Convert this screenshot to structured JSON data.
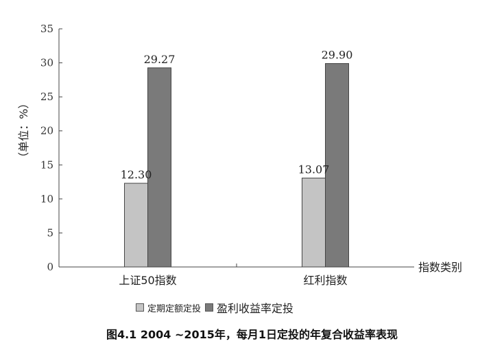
{
  "chart_data": {
    "type": "bar",
    "categories": [
      "上证50指数",
      "红利指数"
    ],
    "series": [
      {
        "name": "定期定额定投",
        "values": [
          12.3,
          13.07
        ],
        "labels": [
          "12.30",
          "13.07"
        ],
        "color": "#c4c4c4"
      },
      {
        "name": "盈利收益率定投",
        "values": [
          29.27,
          29.9
        ],
        "labels": [
          "29.27",
          "29.90"
        ],
        "color": "#7a7a7a"
      }
    ],
    "ylabel": "（单位：%）",
    "xlabel": "指数类别",
    "ylim": [
      0,
      35
    ],
    "yticks": [
      0,
      5,
      10,
      15,
      20,
      25,
      30,
      35
    ],
    "grid": false,
    "legend_position": "bottom"
  },
  "caption": "图4.1 2004 ~2015年，每月1日定投的年复合收益率表现"
}
